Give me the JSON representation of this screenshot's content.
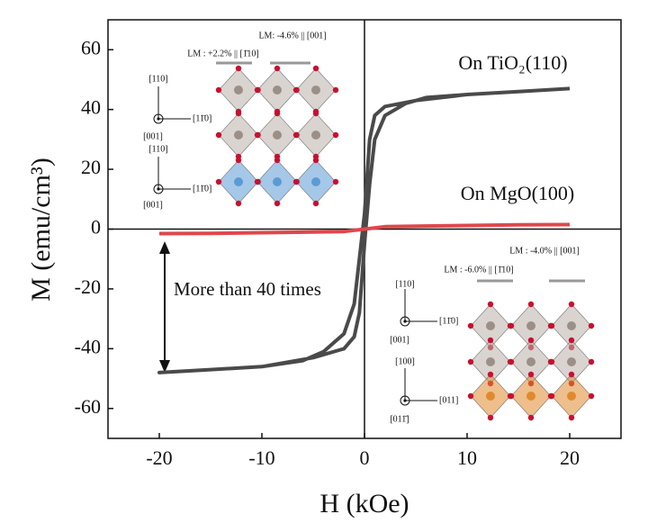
{
  "chart_data": {
    "type": "line",
    "xlabel": "H (kOe)",
    "ylabel": "M (emu/cm³)",
    "xlim": [
      -25,
      25
    ],
    "xticks": [
      -20,
      -10,
      0,
      10,
      20
    ],
    "ylim": [
      -70,
      70
    ],
    "yticks": [
      -60,
      -40,
      -20,
      0,
      20,
      40,
      60
    ],
    "grid": false,
    "series": [
      {
        "name": "On TiO₂(110)",
        "color": "#4a4a4a",
        "x": [
          20,
          15,
          10,
          5,
          2,
          1,
          0.5,
          0,
          -0.5,
          -1,
          -2,
          -4,
          -6,
          -10,
          -15,
          -20,
          -15,
          -10,
          -5,
          -2,
          -1,
          -0.5,
          0,
          0.5,
          1,
          2,
          4,
          6,
          10,
          15,
          20
        ],
        "values": [
          47,
          46,
          45,
          43,
          41,
          38,
          30,
          5,
          -10,
          -25,
          -35,
          -41,
          -44,
          -46,
          -47,
          -48,
          -47,
          -46,
          -43,
          -40,
          -36,
          -28,
          -5,
          15,
          30,
          38,
          42,
          44,
          45,
          46,
          47
        ]
      },
      {
        "name": "On MgO(100)",
        "color": "#e0474c",
        "x": [
          -20,
          -15,
          -10,
          -5,
          -2,
          0,
          2,
          5,
          10,
          15,
          20
        ],
        "values": [
          -1.5,
          -1.4,
          -1.2,
          -1,
          -0.8,
          0,
          0.8,
          1,
          1.2,
          1.4,
          1.5
        ]
      }
    ],
    "annotations": [
      "More than 40 times"
    ],
    "insets": [
      {
        "texts": [
          "LM: -4.6% || [001]",
          "LM : +2.2% || [1̄10]",
          "[110]",
          "[001]",
          "[11̄0]",
          "[110]",
          "[001]",
          "[11̄0]"
        ]
      },
      {
        "texts": [
          "LM : -4.0% || [001]",
          "LM : -6.0% || [1̄10]",
          "[110]",
          "[001]",
          "[11̄0]",
          "[100]",
          "[011̄]",
          "[011]"
        ]
      }
    ]
  }
}
